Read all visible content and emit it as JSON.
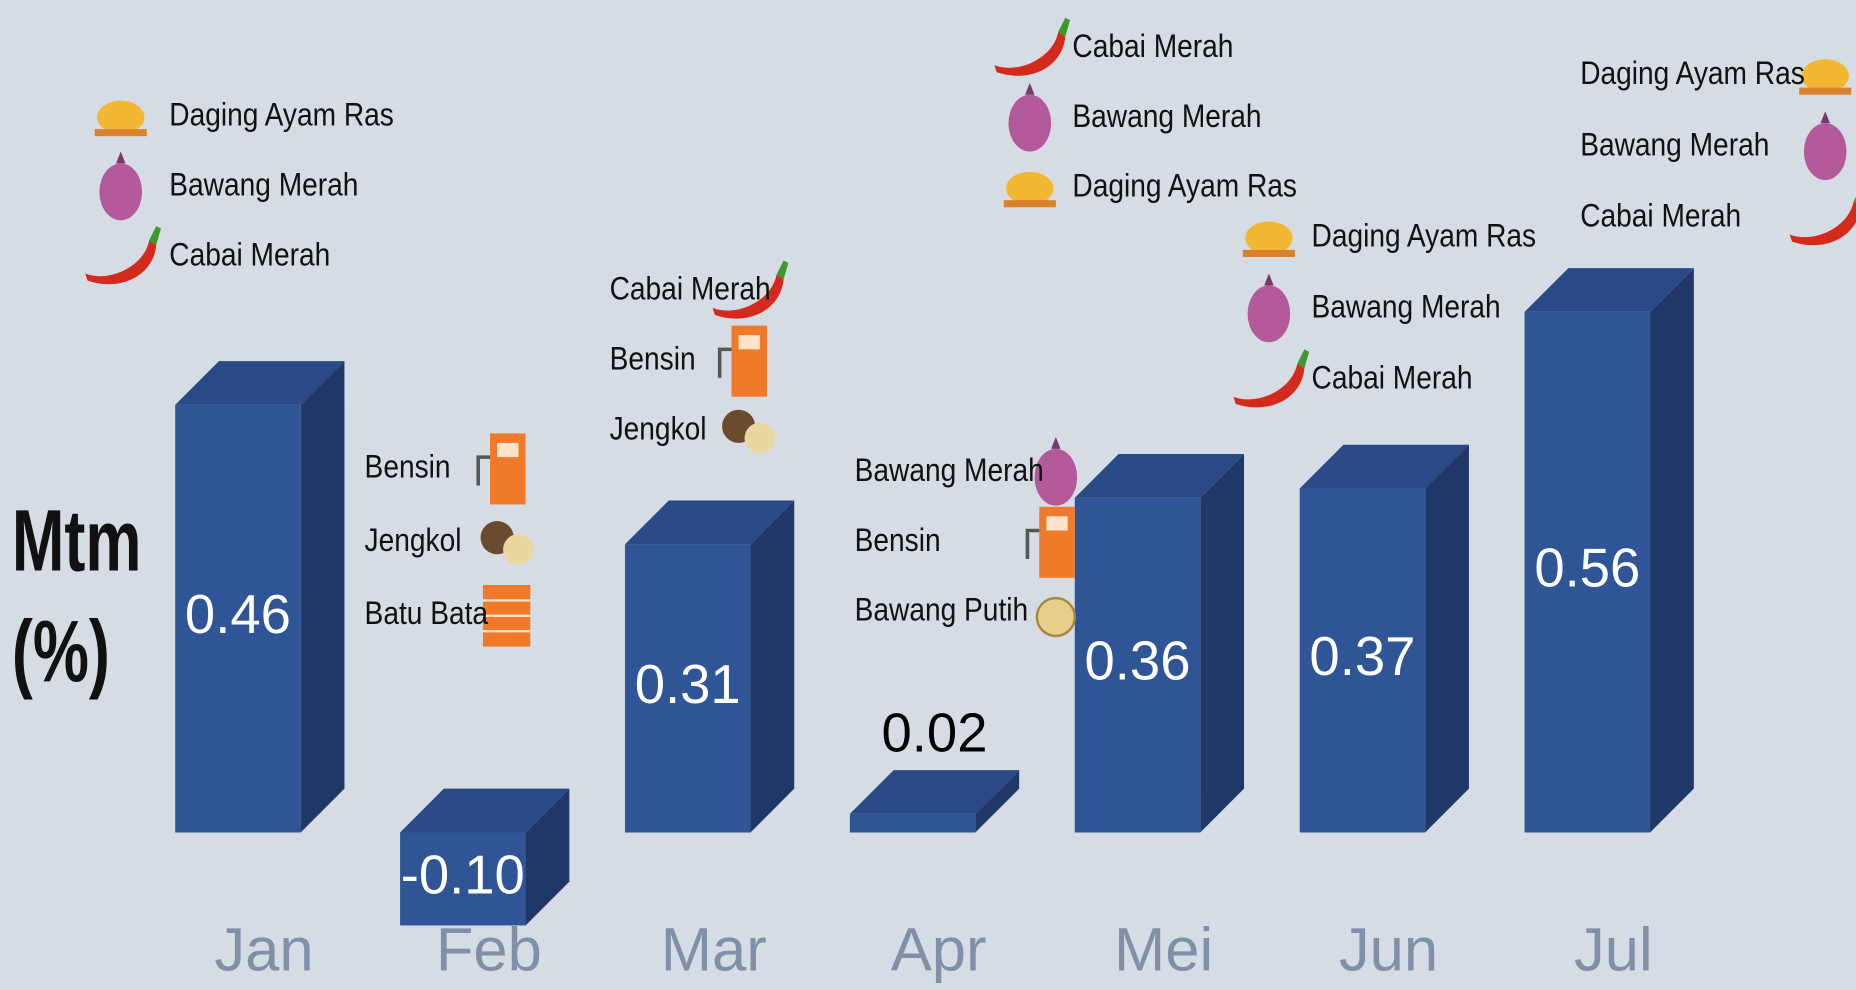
{
  "chart_data": {
    "type": "bar3d",
    "y_label_lines": [
      "Mtm",
      "(%)"
    ],
    "categories": [
      "Jan",
      "Feb",
      "Mar",
      "Apr",
      "Mei",
      "Jun",
      "Jul"
    ],
    "values": [
      0.46,
      -0.1,
      0.31,
      0.02,
      0.36,
      0.37,
      0.56
    ],
    "value_labels": [
      "0.46",
      "-0.10",
      "0.31",
      "0.02",
      "0.36",
      "0.37",
      "0.56"
    ],
    "color": "#2f5597",
    "commodities": [
      [
        "Daging Ayam Ras",
        "Bawang Merah",
        "Cabai Merah"
      ],
      [
        "Bensin",
        "Jengkol",
        "Batu Bata"
      ],
      [
        "Cabai Merah",
        "Bensin",
        "Jengkol"
      ],
      [
        "Bawang Merah",
        "Bensin",
        "Bawang Putih"
      ],
      [
        "Cabai Merah",
        "Bawang Merah",
        "Daging Ayam Ras"
      ],
      [
        "Daging Ayam Ras",
        "Bawang Merah",
        "Cabai Merah"
      ],
      [
        "Daging Ayam Ras",
        "Bawang Merah",
        "Cabai Merah"
      ]
    ]
  }
}
